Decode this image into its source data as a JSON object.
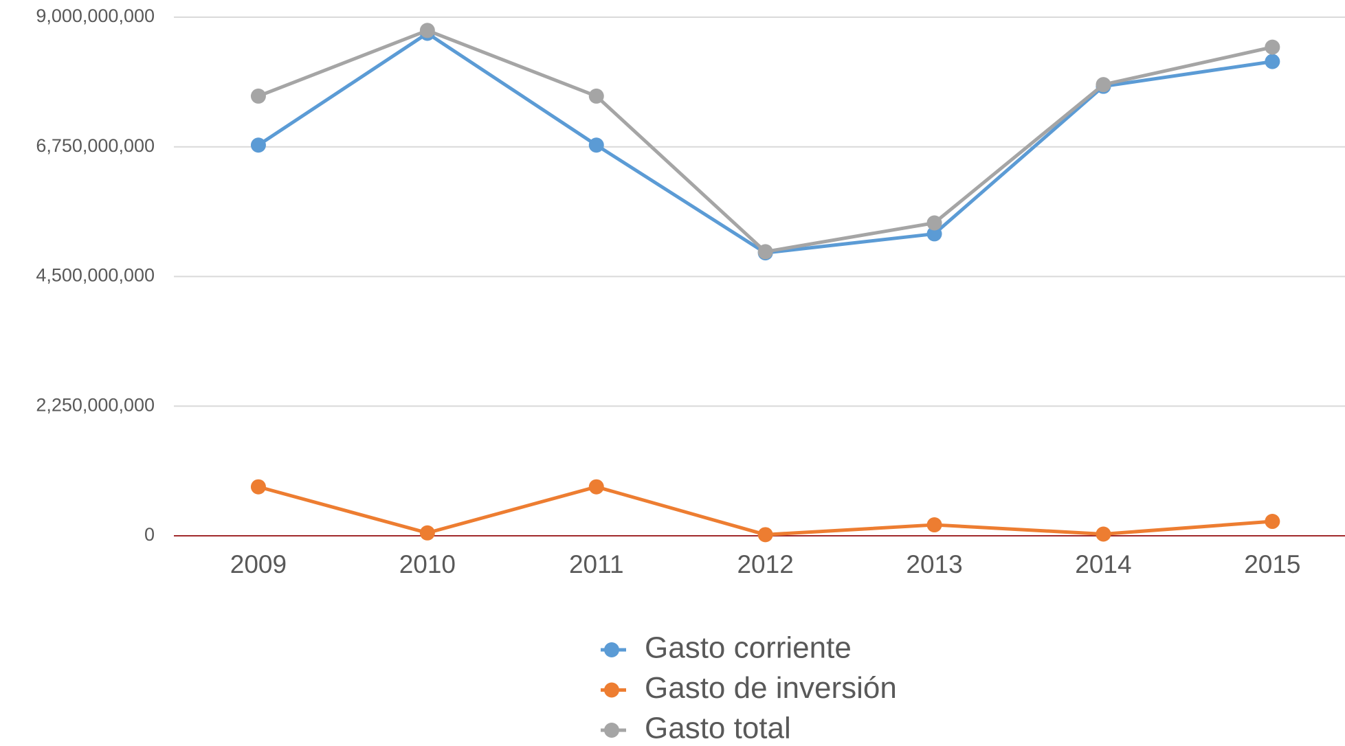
{
  "chart_data": {
    "type": "line",
    "categories": [
      "2009",
      "2010",
      "2011",
      "2012",
      "2013",
      "2014",
      "2015"
    ],
    "series": [
      {
        "name": "Gasto corriente",
        "color": "#5b9bd5",
        "values": [
          6780000000,
          8720000000,
          6780000000,
          4910000000,
          5240000000,
          7800000000,
          8230000000
        ]
      },
      {
        "name": "Gasto de inversión",
        "color": "#ed7d31",
        "values": [
          850000000,
          50000000,
          850000000,
          20000000,
          190000000,
          30000000,
          250000000
        ]
      },
      {
        "name": "Gasto total",
        "color": "#a5a5a5",
        "values": [
          7630000000,
          8770000000,
          7630000000,
          4930000000,
          5430000000,
          7830000000,
          8480000000
        ]
      }
    ],
    "ylim": [
      0,
      9000000000
    ],
    "yticks": [
      0,
      {
        "value": 2250000000,
        "label": "2,250,000,000"
      },
      {
        "value": 4500000000,
        "label": "4,500,000,000"
      },
      {
        "value": 6750000000,
        "label": "6,750,000,000"
      },
      {
        "value": 9000000000,
        "label": "9,000,000,000"
      }
    ],
    "grid": true,
    "legend": "bottom"
  }
}
